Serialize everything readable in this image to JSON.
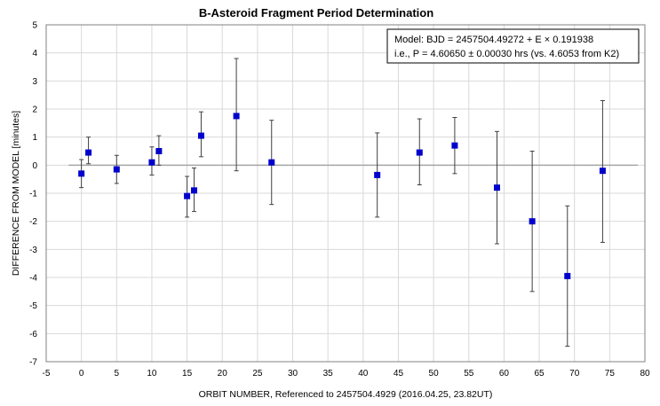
{
  "chart_data": {
    "type": "scatter",
    "title": "B-Asteroid Fragment Period Determination",
    "xlabel": "ORBIT NUMBER, Referenced to 2457504.4929 (2016.04.25, 23.82UT)",
    "ylabel": "DIFFERENCE FROM MODEL [minutes]",
    "xlim": [
      -5,
      80
    ],
    "ylim": [
      -7,
      5
    ],
    "xticks": [
      -5,
      0,
      5,
      10,
      15,
      20,
      25,
      30,
      35,
      40,
      45,
      50,
      55,
      60,
      65,
      70,
      75,
      80
    ],
    "yticks": [
      5,
      4,
      3,
      2,
      1,
      0,
      -1,
      -2,
      -3,
      -4,
      -5,
      -6,
      -7
    ],
    "grid": true,
    "zero_line": true,
    "colors": {
      "marker": "#0000cc",
      "grid": "#d9d9d9",
      "error_bar": "#404040",
      "zero_line": "#a6a6a6"
    },
    "annotation": {
      "line1": "Model: BJD = 2457504.49272 + E × 0.191938",
      "line2": "i.e., P = 4.60650 ± 0.00030 hrs (vs. 4.6053 from K2)"
    },
    "points": [
      {
        "x": 0,
        "y": -0.3,
        "err_low": -0.8,
        "err_high": 0.2
      },
      {
        "x": 1,
        "y": 0.45,
        "err_low": 0.05,
        "err_high": 1.0
      },
      {
        "x": 5,
        "y": -0.15,
        "err_low": -0.65,
        "err_high": 0.35
      },
      {
        "x": 10,
        "y": 0.1,
        "err_low": -0.35,
        "err_high": 0.65
      },
      {
        "x": 11,
        "y": 0.5,
        "err_low": 0.0,
        "err_high": 1.05
      },
      {
        "x": 15,
        "y": -1.1,
        "err_low": -1.85,
        "err_high": -0.4
      },
      {
        "x": 16,
        "y": -0.9,
        "err_low": -1.65,
        "err_high": -0.1
      },
      {
        "x": 17,
        "y": 1.05,
        "err_low": 0.3,
        "err_high": 1.9
      },
      {
        "x": 22,
        "y": 1.75,
        "err_low": -0.2,
        "err_high": 3.8
      },
      {
        "x": 27,
        "y": 0.1,
        "err_low": -1.4,
        "err_high": 1.6
      },
      {
        "x": 42,
        "y": -0.35,
        "err_low": -1.85,
        "err_high": 1.15
      },
      {
        "x": 48,
        "y": 0.45,
        "err_low": -0.7,
        "err_high": 1.65
      },
      {
        "x": 53,
        "y": 0.7,
        "err_low": -0.3,
        "err_high": 1.7
      },
      {
        "x": 59,
        "y": -0.8,
        "err_low": -2.8,
        "err_high": 1.2
      },
      {
        "x": 64,
        "y": -2.0,
        "err_low": -4.5,
        "err_high": 0.5
      },
      {
        "x": 69,
        "y": -3.95,
        "err_low": -6.45,
        "err_high": -1.45
      },
      {
        "x": 74,
        "y": -0.2,
        "err_low": -2.75,
        "err_high": 2.3
      }
    ]
  }
}
